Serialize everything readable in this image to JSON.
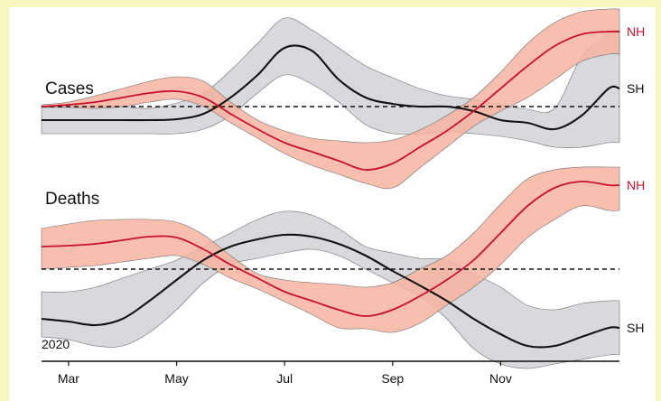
{
  "colors": {
    "frame": "#f4f6bd",
    "nh_line": "#c8102e",
    "nh_band": "#f7b3a0",
    "sh_line": "#111111",
    "sh_band": "#d4d5d9",
    "reference_line": "#111111"
  },
  "chart_data": [
    {
      "type": "line",
      "title": "Cases",
      "x_tick_labels": [
        "Mar",
        "May",
        "Jul",
        "Sep",
        "Nov"
      ],
      "x_tick_values": [
        3,
        5,
        7,
        9,
        11
      ],
      "xlim": [
        2.5,
        13.2
      ],
      "ylim": [
        -1,
        1
      ],
      "reference_line": 0,
      "grid": false,
      "series": [
        {
          "name": "NH",
          "x": [
            2.5,
            3.0,
            3.5,
            4.0,
            4.5,
            5.0,
            5.5,
            6.0,
            6.5,
            7.0,
            7.5,
            8.0,
            8.5,
            9.0,
            9.5,
            10.0,
            10.5,
            11.0,
            11.5,
            12.0,
            12.5,
            13.0,
            13.2
          ],
          "values": [
            0.0,
            0.02,
            0.05,
            0.1,
            0.15,
            0.17,
            0.1,
            -0.08,
            -0.25,
            -0.4,
            -0.5,
            -0.6,
            -0.7,
            -0.63,
            -0.45,
            -0.27,
            -0.05,
            0.2,
            0.45,
            0.67,
            0.8,
            0.83,
            0.83
          ],
          "band_upper": [
            0.02,
            0.05,
            0.12,
            0.2,
            0.28,
            0.33,
            0.28,
            0.05,
            -0.15,
            -0.27,
            -0.35,
            -0.38,
            -0.4,
            -0.37,
            -0.26,
            -0.1,
            0.1,
            0.38,
            0.7,
            0.93,
            1.05,
            1.08,
            1.08
          ],
          "band_lower": [
            -0.01,
            -0.01,
            -0.02,
            0.0,
            0.05,
            0.08,
            0.0,
            -0.18,
            -0.35,
            -0.52,
            -0.65,
            -0.75,
            -0.85,
            -0.9,
            -0.68,
            -0.45,
            -0.22,
            -0.05,
            0.1,
            0.3,
            0.5,
            0.58,
            0.58
          ]
        },
        {
          "name": "SH",
          "x": [
            2.5,
            3.0,
            3.5,
            4.0,
            4.5,
            5.0,
            5.5,
            6.0,
            6.5,
            7.0,
            7.5,
            8.0,
            8.5,
            9.0,
            9.5,
            10.0,
            10.5,
            11.0,
            11.5,
            12.0,
            12.5,
            13.0,
            13.2
          ],
          "values": [
            -0.15,
            -0.15,
            -0.15,
            -0.15,
            -0.15,
            -0.14,
            -0.08,
            0.1,
            0.35,
            0.65,
            0.62,
            0.3,
            0.1,
            0.03,
            0.0,
            0.0,
            -0.05,
            -0.15,
            -0.18,
            -0.25,
            -0.1,
            0.2,
            0.2
          ],
          "band_upper": [
            0.0,
            0.02,
            0.02,
            0.0,
            -0.02,
            0.04,
            0.15,
            0.4,
            0.7,
            0.98,
            0.85,
            0.65,
            0.45,
            0.32,
            0.2,
            0.12,
            0.08,
            0.02,
            -0.03,
            -0.02,
            0.55,
            0.8,
            0.85
          ],
          "band_lower": [
            -0.3,
            -0.3,
            -0.3,
            -0.3,
            -0.3,
            -0.3,
            -0.25,
            -0.1,
            0.15,
            0.35,
            0.25,
            0.05,
            -0.2,
            -0.3,
            -0.3,
            -0.28,
            -0.3,
            -0.33,
            -0.38,
            -0.45,
            -0.45,
            -0.4,
            -0.4
          ]
        }
      ]
    },
    {
      "type": "line",
      "title": "Deaths",
      "x_tick_labels": [
        "Mar",
        "May",
        "Jul",
        "Sep",
        "Nov"
      ],
      "x_tick_values": [
        3,
        5,
        7,
        9,
        11
      ],
      "xlim": [
        2.5,
        13.2
      ],
      "ylim": [
        -1,
        1
      ],
      "reference_line": 0,
      "grid": false,
      "series": [
        {
          "name": "NH",
          "x": [
            2.5,
            3.0,
            3.5,
            4.0,
            4.5,
            5.0,
            5.5,
            6.0,
            6.5,
            7.0,
            7.5,
            8.0,
            8.5,
            9.0,
            9.5,
            10.0,
            10.5,
            11.0,
            11.5,
            12.0,
            12.5,
            13.0,
            13.2
          ],
          "values": [
            0.25,
            0.26,
            0.28,
            0.32,
            0.36,
            0.35,
            0.22,
            0.05,
            -0.1,
            -0.25,
            -0.35,
            -0.45,
            -0.52,
            -0.45,
            -0.3,
            -0.12,
            0.1,
            0.4,
            0.7,
            0.9,
            0.97,
            0.93,
            0.93
          ],
          "band_upper": [
            0.45,
            0.5,
            0.54,
            0.55,
            0.55,
            0.52,
            0.38,
            0.15,
            -0.05,
            -0.12,
            -0.15,
            -0.17,
            -0.2,
            -0.15,
            0.0,
            0.15,
            0.4,
            0.72,
            1.0,
            1.1,
            1.13,
            1.13,
            1.13
          ],
          "band_lower": [
            0.0,
            0.02,
            0.04,
            0.08,
            0.12,
            0.15,
            0.05,
            -0.1,
            -0.22,
            -0.36,
            -0.5,
            -0.65,
            -0.66,
            -0.7,
            -0.6,
            -0.4,
            -0.2,
            0.05,
            0.35,
            0.55,
            0.7,
            0.65,
            0.65
          ]
        },
        {
          "name": "SH",
          "x": [
            2.5,
            3.0,
            3.5,
            4.0,
            4.5,
            5.0,
            5.5,
            6.0,
            6.5,
            7.0,
            7.5,
            8.0,
            8.5,
            9.0,
            9.5,
            10.0,
            10.5,
            11.0,
            11.5,
            12.0,
            12.5,
            13.0,
            13.2
          ],
          "values": [
            -0.55,
            -0.58,
            -0.62,
            -0.55,
            -0.35,
            -0.12,
            0.1,
            0.25,
            0.33,
            0.38,
            0.36,
            0.28,
            0.15,
            -0.02,
            -0.18,
            -0.35,
            -0.55,
            -0.72,
            -0.85,
            -0.85,
            -0.75,
            -0.65,
            -0.65
          ],
          "band_upper": [
            -0.25,
            -0.25,
            -0.2,
            -0.1,
            0.0,
            0.1,
            0.25,
            0.4,
            0.55,
            0.64,
            0.6,
            0.45,
            0.25,
            0.18,
            0.12,
            0.1,
            -0.05,
            -0.2,
            -0.4,
            -0.45,
            -0.38,
            -0.35,
            -0.35
          ],
          "band_lower": [
            -0.75,
            -0.78,
            -0.85,
            -0.85,
            -0.7,
            -0.45,
            -0.15,
            0.05,
            0.12,
            0.18,
            0.22,
            0.15,
            0.0,
            -0.15,
            -0.3,
            -0.55,
            -0.88,
            -1.05,
            -1.1,
            -1.05,
            -1.0,
            -0.95,
            -0.95
          ]
        }
      ]
    }
  ],
  "year_label": "2020"
}
